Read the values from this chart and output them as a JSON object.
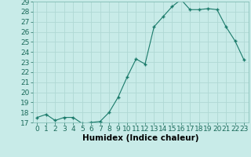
{
  "xlabel": "Humidex (Indice chaleur)",
  "x": [
    0,
    1,
    2,
    3,
    4,
    5,
    6,
    7,
    8,
    9,
    10,
    11,
    12,
    13,
    14,
    15,
    16,
    17,
    18,
    19,
    20,
    21,
    22,
    23
  ],
  "y": [
    17.5,
    17.8,
    17.2,
    17.5,
    17.5,
    16.9,
    17.0,
    17.1,
    18.0,
    19.5,
    21.5,
    23.3,
    22.8,
    26.5,
    27.5,
    28.5,
    29.2,
    28.2,
    28.2,
    28.3,
    28.2,
    26.5,
    25.1,
    23.2
  ],
  "line_color": "#1a7a6a",
  "marker_color": "#1a7a6a",
  "bg_color": "#c8ebe8",
  "grid_color": "#b0d8d4",
  "ylim": [
    17,
    29
  ],
  "yticks": [
    17,
    18,
    19,
    20,
    21,
    22,
    23,
    24,
    25,
    26,
    27,
    28,
    29
  ],
  "xticks": [
    0,
    1,
    2,
    3,
    4,
    5,
    6,
    7,
    8,
    9,
    10,
    11,
    12,
    13,
    14,
    15,
    16,
    17,
    18,
    19,
    20,
    21,
    22,
    23
  ],
  "tick_fontsize": 6.5,
  "label_fontsize": 7.5
}
